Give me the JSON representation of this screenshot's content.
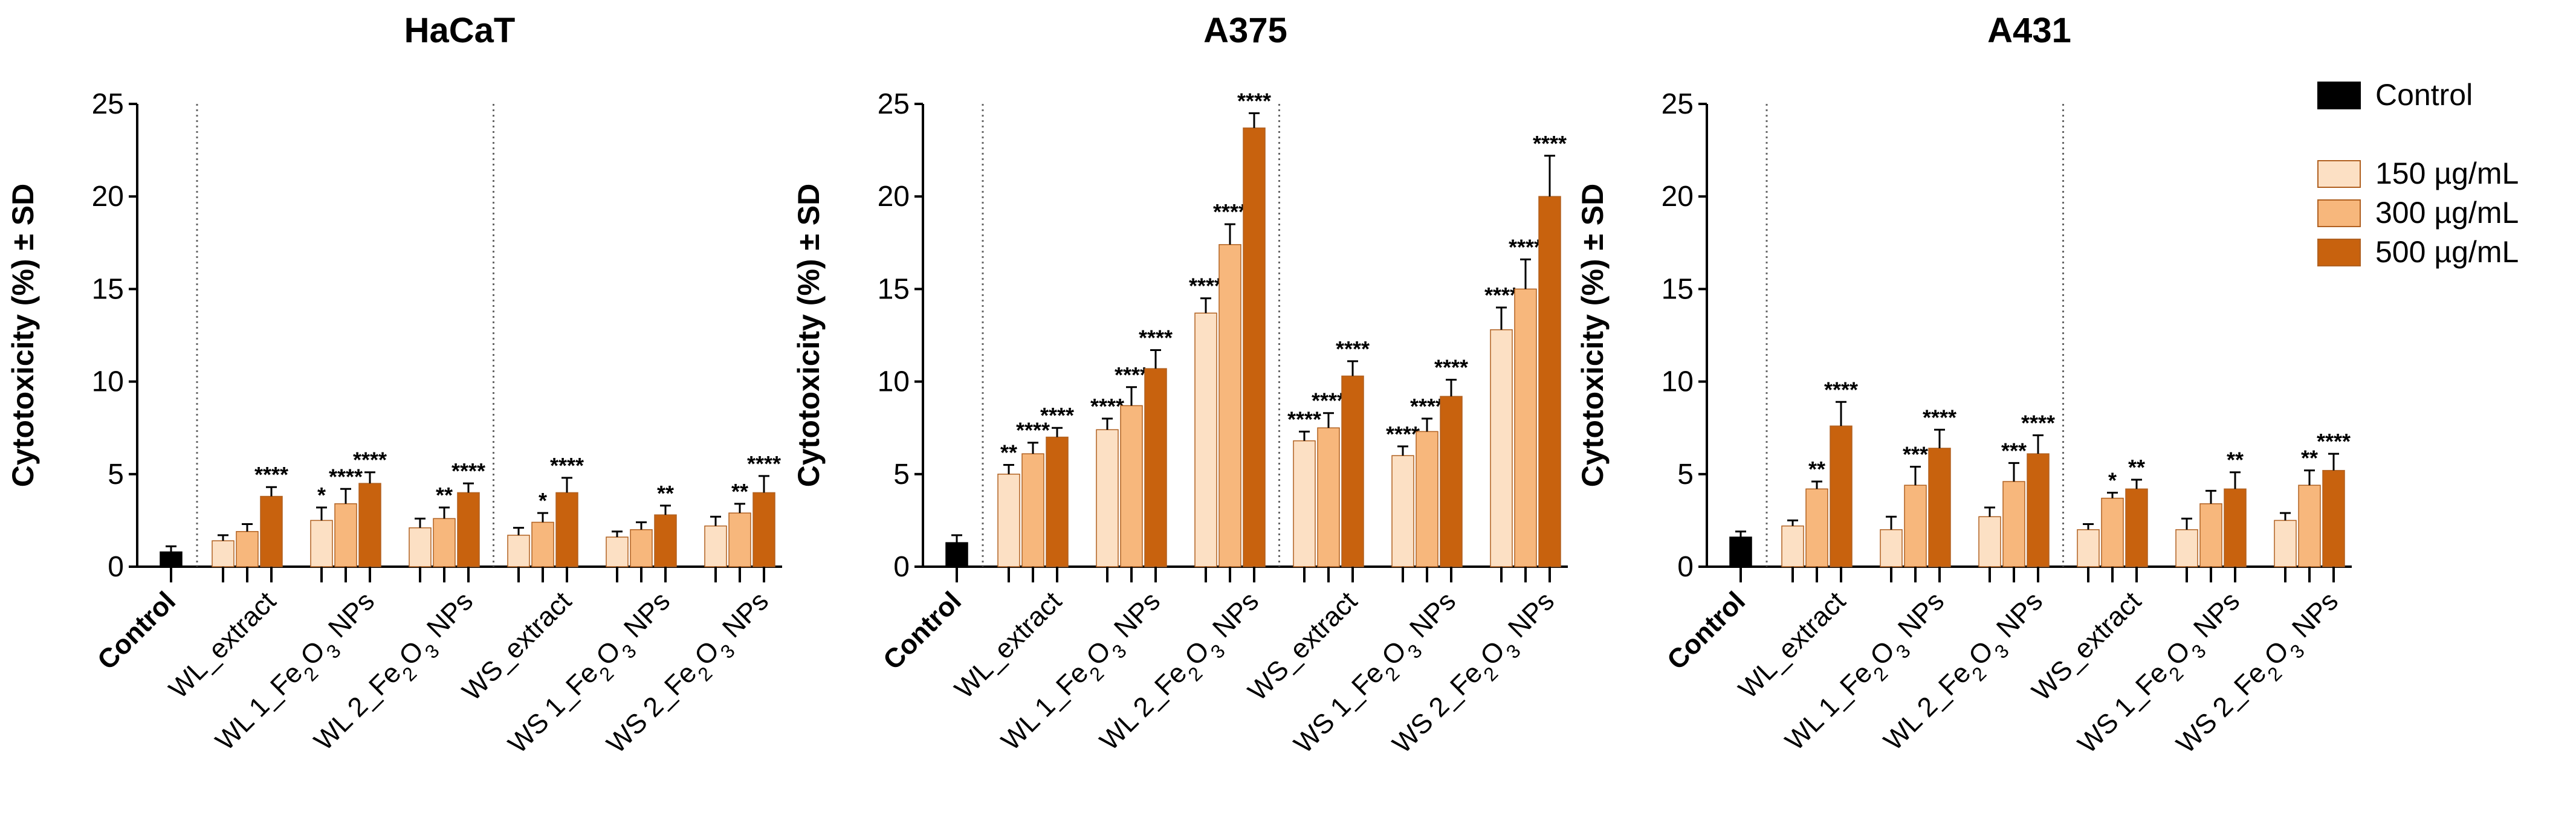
{
  "chart_data": {
    "type": "bar",
    "legend": {
      "position": "right",
      "entries": [
        {
          "name": "Control",
          "color": "#000000"
        },
        {
          "name": "150 µg/mL",
          "color": "#FCE0C4"
        },
        {
          "name": "300 µg/mL",
          "color": "#F7B77C"
        },
        {
          "name": "500 µg/mL",
          "color": "#C8620E"
        }
      ]
    },
    "ylabel": "Cytotoxicity (%) ± SD",
    "ylim": [
      0,
      25
    ],
    "yticks": [
      "0",
      "5",
      "10",
      "15",
      "20",
      "25"
    ],
    "categories": [
      {
        "key": "control",
        "label": "Control",
        "bold": true
      },
      {
        "key": "wl_extract",
        "label": "WL_extract"
      },
      {
        "key": "wl1",
        "label": "WL 1_Fe₂O₃ NPs"
      },
      {
        "key": "wl2",
        "label": "WL 2_Fe₂O₃ NPs"
      },
      {
        "key": "ws_extract",
        "label": "WS_extract"
      },
      {
        "key": "ws1",
        "label": "WS 1_Fe₂O₃ NPs"
      },
      {
        "key": "ws2",
        "label": "WS 2_Fe₂O₃ NPs"
      }
    ],
    "panels": [
      {
        "title": "HaCaT",
        "control": {
          "value": 0.8,
          "sd": 0.3
        },
        "groups": [
          {
            "values": [
              1.4,
              1.9,
              3.8
            ],
            "sd": [
              0.3,
              0.4,
              0.5
            ],
            "sig": [
              "",
              "",
              "****"
            ]
          },
          {
            "values": [
              2.5,
              3.4,
              4.5
            ],
            "sd": [
              0.7,
              0.8,
              0.6
            ],
            "sig": [
              "*",
              "****",
              "****"
            ]
          },
          {
            "values": [
              2.1,
              2.6,
              4.0
            ],
            "sd": [
              0.5,
              0.6,
              0.5
            ],
            "sig": [
              "",
              "**",
              "****"
            ]
          },
          {
            "values": [
              1.7,
              2.4,
              4.0
            ],
            "sd": [
              0.4,
              0.5,
              0.8
            ],
            "sig": [
              "",
              "*",
              "****"
            ]
          },
          {
            "values": [
              1.6,
              2.0,
              2.8
            ],
            "sd": [
              0.3,
              0.4,
              0.5
            ],
            "sig": [
              "",
              "",
              "**"
            ]
          },
          {
            "values": [
              2.2,
              2.9,
              4.0
            ],
            "sd": [
              0.5,
              0.5,
              0.9
            ],
            "sig": [
              "",
              "**",
              "****"
            ]
          }
        ]
      },
      {
        "title": "A375",
        "control": {
          "value": 1.3,
          "sd": 0.4
        },
        "groups": [
          {
            "values": [
              5.0,
              6.1,
              7.0
            ],
            "sd": [
              0.5,
              0.6,
              0.5
            ],
            "sig": [
              "**",
              "****",
              "****"
            ]
          },
          {
            "values": [
              7.4,
              8.7,
              10.7
            ],
            "sd": [
              0.6,
              1.0,
              1.0
            ],
            "sig": [
              "****",
              "****",
              "****"
            ]
          },
          {
            "values": [
              13.7,
              17.4,
              23.7
            ],
            "sd": [
              0.8,
              1.1,
              0.8
            ],
            "sig": [
              "****",
              "****",
              "****"
            ]
          },
          {
            "values": [
              6.8,
              7.5,
              10.3
            ],
            "sd": [
              0.5,
              0.8,
              0.8
            ],
            "sig": [
              "****",
              "****",
              "****"
            ]
          },
          {
            "values": [
              6.0,
              7.3,
              9.2
            ],
            "sd": [
              0.5,
              0.7,
              0.9
            ],
            "sig": [
              "****",
              "****",
              "****"
            ]
          },
          {
            "values": [
              12.8,
              15.0,
              20.0
            ],
            "sd": [
              1.2,
              1.6,
              2.2
            ],
            "sig": [
              "****",
              "****",
              "****"
            ]
          }
        ]
      },
      {
        "title": "A431",
        "control": {
          "value": 1.6,
          "sd": 0.3
        },
        "groups": [
          {
            "values": [
              2.2,
              4.2,
              7.6
            ],
            "sd": [
              0.3,
              0.4,
              1.3
            ],
            "sig": [
              "",
              "**",
              "****"
            ]
          },
          {
            "values": [
              2.0,
              4.4,
              6.4
            ],
            "sd": [
              0.7,
              1.0,
              1.0
            ],
            "sig": [
              "",
              "***",
              "****"
            ]
          },
          {
            "values": [
              2.7,
              4.6,
              6.1
            ],
            "sd": [
              0.5,
              1.0,
              1.0
            ],
            "sig": [
              "",
              "***",
              "****"
            ]
          },
          {
            "values": [
              2.0,
              3.7,
              4.2
            ],
            "sd": [
              0.3,
              0.3,
              0.5
            ],
            "sig": [
              "",
              "*",
              "**"
            ]
          },
          {
            "values": [
              2.0,
              3.4,
              4.2
            ],
            "sd": [
              0.6,
              0.7,
              0.9
            ],
            "sig": [
              "",
              "",
              "**"
            ]
          },
          {
            "values": [
              2.5,
              4.4,
              5.2
            ],
            "sd": [
              0.4,
              0.8,
              0.9
            ],
            "sig": [
              "",
              "**",
              "****"
            ]
          }
        ]
      }
    ]
  }
}
